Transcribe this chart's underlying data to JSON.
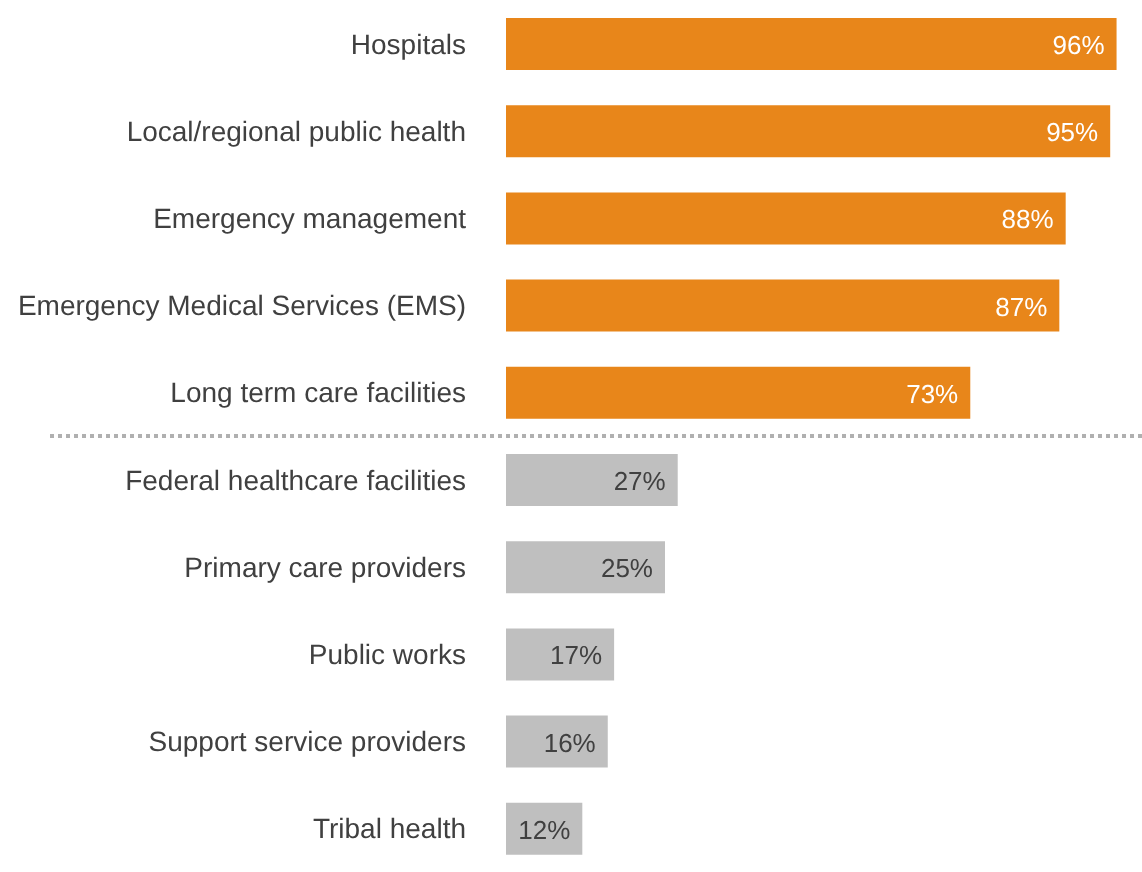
{
  "chart_data": {
    "type": "bar",
    "orientation": "horizontal",
    "categories": [
      "Hospitals",
      "Local/regional public health",
      "Emergency management",
      "Emergency Medical Services (EMS)",
      "Long term care facilities",
      "Federal healthcare facilities",
      "Primary care providers",
      "Public works",
      "Support service providers",
      "Tribal health"
    ],
    "values": [
      96,
      95,
      88,
      87,
      73,
      27,
      25,
      17,
      16,
      12
    ],
    "value_labels": [
      "96%",
      "95%",
      "88%",
      "87%",
      "73%",
      "27%",
      "25%",
      "17%",
      "16%",
      "12%"
    ],
    "colors": [
      "#e8861a",
      "#e8861a",
      "#e8861a",
      "#e8861a",
      "#e8861a",
      "#bfbfbf",
      "#bfbfbf",
      "#bfbfbf",
      "#bfbfbf",
      "#bfbfbf"
    ],
    "data_labels": true,
    "xlim": [
      0,
      100
    ],
    "tick_labels": "y"
  }
}
